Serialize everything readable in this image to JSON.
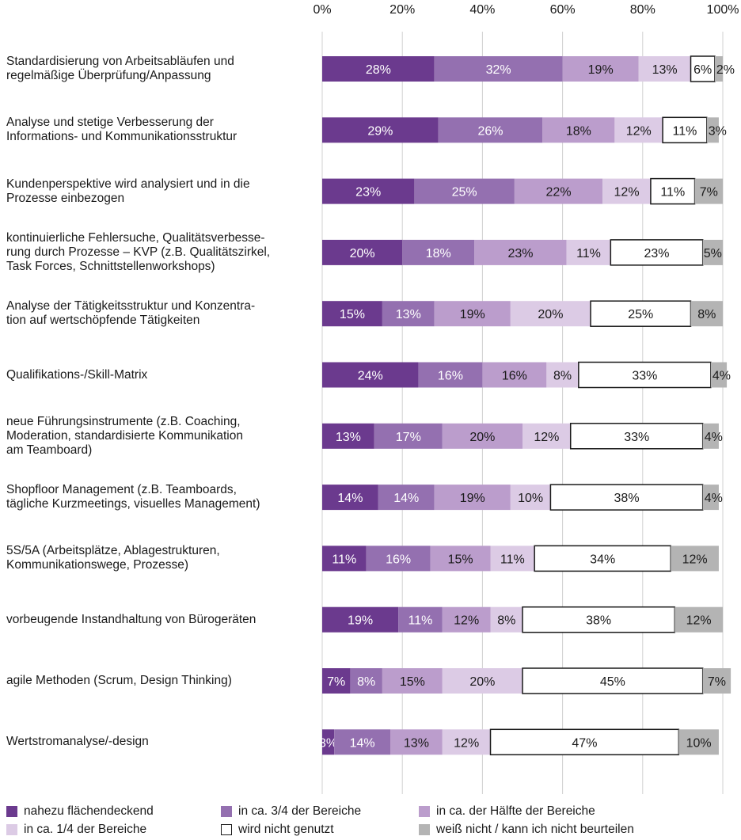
{
  "chart_data": {
    "type": "bar",
    "orientation": "horizontal",
    "stacked": true,
    "xlim": [
      0,
      100
    ],
    "x_ticks": [
      "0%",
      "20%",
      "40%",
      "60%",
      "80%",
      "100%"
    ],
    "value_suffix": "%",
    "categories": [
      [
        "Standardisierung von Arbeitsabläufen und",
        "regelmäßige Überprüfung/Anpassung"
      ],
      [
        "Analyse und stetige Verbesserung der",
        "Informations- und Kommunikationsstruktur"
      ],
      [
        "Kundenperspektive wird analysiert und in die",
        "Prozesse einbezogen"
      ],
      [
        "kontinuierliche Fehlersuche, Qualitätsverbesse-",
        "rung durch Prozesse – KVP (z.B. Qualitätszirkel,",
        "Task Forces, Schnittstellenworkshops)"
      ],
      [
        "Analyse der Tätigkeitsstruktur und Konzentra-",
        "tion auf wertschöpfende Tätigkeiten"
      ],
      [
        "Qualifikations-/Skill-Matrix"
      ],
      [
        "neue Führungsinstrumente (z.B. Coaching,",
        "Moderation, standardisierte Kommunikation",
        "am Teamboard)"
      ],
      [
        "Shopfloor Management (z.B. Teamboards,",
        "tägliche Kurzmeetings, visuelles Management)"
      ],
      [
        "5S/5A (Arbeitsplätze, Ablagestrukturen,",
        "Kommunikationswege, Prozesse)"
      ],
      [
        "vorbeugende Instandhaltung von Bürogeräten"
      ],
      [
        "agile Methoden (Scrum, Design Thinking)"
      ],
      [
        "Wertstromanalyse/-design"
      ]
    ],
    "series": [
      {
        "name": "nahezu flächendeckend",
        "color": "#6b3a8e",
        "values": [
          28,
          29,
          23,
          20,
          15,
          24,
          13,
          14,
          11,
          19,
          7,
          3
        ]
      },
      {
        "name": "in ca. 3/4 der Bereiche",
        "color": "#9470b0",
        "values": [
          32,
          26,
          25,
          18,
          13,
          16,
          17,
          14,
          16,
          11,
          8,
          14
        ]
      },
      {
        "name": "in ca. der Hälfte der Bereiche",
        "color": "#bb9dcc",
        "values": [
          19,
          18,
          22,
          23,
          19,
          16,
          20,
          19,
          15,
          12,
          15,
          13
        ]
      },
      {
        "name": "in ca. 1/4 der Bereiche",
        "color": "#dccbe5",
        "values": [
          13,
          12,
          12,
          11,
          20,
          8,
          12,
          10,
          11,
          8,
          20,
          12
        ]
      },
      {
        "name": "wird nicht genutzt",
        "color": "#ffffff",
        "values": [
          6,
          11,
          11,
          23,
          25,
          33,
          33,
          38,
          34,
          38,
          45,
          47
        ]
      },
      {
        "name": "weiß nicht / kann ich nicht beurteilen",
        "color": "#b4b4b4",
        "values": [
          2,
          3,
          7,
          5,
          8,
          4,
          4,
          4,
          12,
          12,
          7,
          10
        ]
      }
    ],
    "legend_position": "bottom",
    "grid": true
  }
}
